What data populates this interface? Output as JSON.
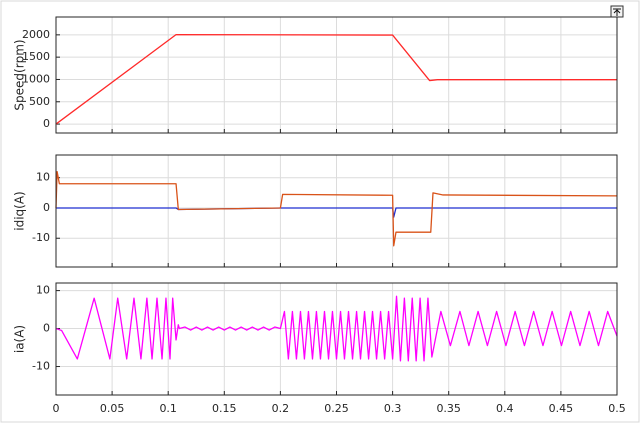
{
  "chart_data": [
    {
      "type": "line",
      "ylabel": "Speed(rpm)",
      "x": [
        0,
        0.107,
        0.3,
        0.333,
        0.34,
        0.5
      ],
      "values": [
        0,
        2005,
        1995,
        975,
        995,
        995
      ],
      "color": "#ff2a2a",
      "xlim": [
        0,
        0.5
      ],
      "xticks": [
        0,
        0.05,
        0.1,
        0.15,
        0.2,
        0.25,
        0.3,
        0.35,
        0.4,
        0.45,
        0.5
      ],
      "xtick_labels": false,
      "ylim": [
        -200,
        2400
      ],
      "yticks": [
        0,
        500,
        1000,
        1500,
        2000
      ],
      "grid": true
    },
    {
      "type": "line",
      "ylabel": "idiq(A)",
      "x": [
        0,
        0.001,
        0.003,
        0.107,
        0.109,
        0.2,
        0.202,
        0.3,
        0.301,
        0.303,
        0.334,
        0.336,
        0.345,
        0.5
      ],
      "series": [
        {
          "color": "#1f2fd0",
          "values": [
            0,
            0,
            0,
            0,
            -0.5,
            0,
            0,
            0,
            -3,
            0,
            0,
            0,
            0,
            0
          ]
        },
        {
          "color": "#d95319",
          "values": [
            0,
            12,
            8,
            8,
            -0.5,
            0,
            4.5,
            4.2,
            -12.5,
            -8,
            -8,
            5,
            4.3,
            4
          ]
        }
      ],
      "xlim": [
        0,
        0.5
      ],
      "xticks": [
        0,
        0.05,
        0.1,
        0.15,
        0.2,
        0.25,
        0.3,
        0.35,
        0.4,
        0.45,
        0.5
      ],
      "xtick_labels": false,
      "ylim": [
        -19.5,
        17.5
      ],
      "yticks": [
        -10,
        0,
        10
      ],
      "grid": true
    },
    {
      "type": "line",
      "ylabel": "ia(A)",
      "x": [
        0,
        0.005,
        0.019,
        0.034,
        0.048,
        0.055,
        0.063,
        0.0695,
        0.0757,
        0.081,
        0.0856,
        0.09,
        0.0945,
        0.098,
        0.1016,
        0.104,
        0.107,
        0.109,
        0.11,
        0.115,
        0.12,
        0.125,
        0.13,
        0.135,
        0.14,
        0.145,
        0.15,
        0.155,
        0.16,
        0.165,
        0.17,
        0.175,
        0.18,
        0.185,
        0.19,
        0.195,
        0.2,
        0.2036,
        0.2071,
        0.2107,
        0.2143,
        0.2179,
        0.2214,
        0.225,
        0.2286,
        0.2321,
        0.2357,
        0.2393,
        0.2429,
        0.2464,
        0.25,
        0.2536,
        0.2571,
        0.2607,
        0.2643,
        0.2679,
        0.2714,
        0.275,
        0.2786,
        0.2821,
        0.2857,
        0.2893,
        0.2929,
        0.2964,
        0.3,
        0.3035,
        0.307,
        0.3105,
        0.314,
        0.3175,
        0.321,
        0.3245,
        0.328,
        0.3315,
        0.335,
        0.343,
        0.3515,
        0.36,
        0.368,
        0.3762,
        0.3845,
        0.3927,
        0.401,
        0.4092,
        0.4175,
        0.4257,
        0.434,
        0.4422,
        0.4505,
        0.4587,
        0.467,
        0.4752,
        0.4835,
        0.4917,
        0.5
      ],
      "values": [
        0,
        -0.5,
        -8,
        8,
        -8,
        8,
        -8,
        8,
        -8,
        8,
        -8,
        8,
        -8,
        8,
        -8,
        8,
        -3,
        1,
        0,
        0.4,
        -0.4,
        0.4,
        -0.4,
        0.4,
        -0.4,
        0.4,
        -0.4,
        0.4,
        -0.4,
        0.4,
        -0.4,
        0.4,
        -0.4,
        0.4,
        -0.4,
        0.4,
        0,
        4.5,
        -8,
        4.5,
        -8,
        4.5,
        -8,
        4.5,
        -8,
        4.5,
        -8,
        4.5,
        -8,
        4.5,
        -8,
        4.5,
        -8,
        4.5,
        -8,
        4.5,
        -8,
        4.5,
        -8,
        4.5,
        -8,
        4.5,
        -8,
        4.5,
        -8,
        8.5,
        -8.5,
        8,
        -8.5,
        8,
        -8.5,
        8,
        -8.5,
        8,
        -7.5,
        4.5,
        -4.5,
        4.5,
        -4.5,
        4.5,
        -4.5,
        4.5,
        -4.5,
        4.5,
        -4.5,
        4.5,
        -4.5,
        4.5,
        -4.5,
        4.5,
        -4.5,
        4.5,
        -4.5,
        4.5,
        -2
      ],
      "color": "#ff00ff",
      "xlim": [
        0,
        0.5
      ],
      "xticks": [
        0,
        0.05,
        0.1,
        0.15,
        0.2,
        0.25,
        0.3,
        0.35,
        0.4,
        0.45,
        0.5
      ],
      "ylim": [
        -17.5,
        12
      ],
      "yticks": [
        -10,
        0,
        10
      ],
      "grid": true
    }
  ]
}
